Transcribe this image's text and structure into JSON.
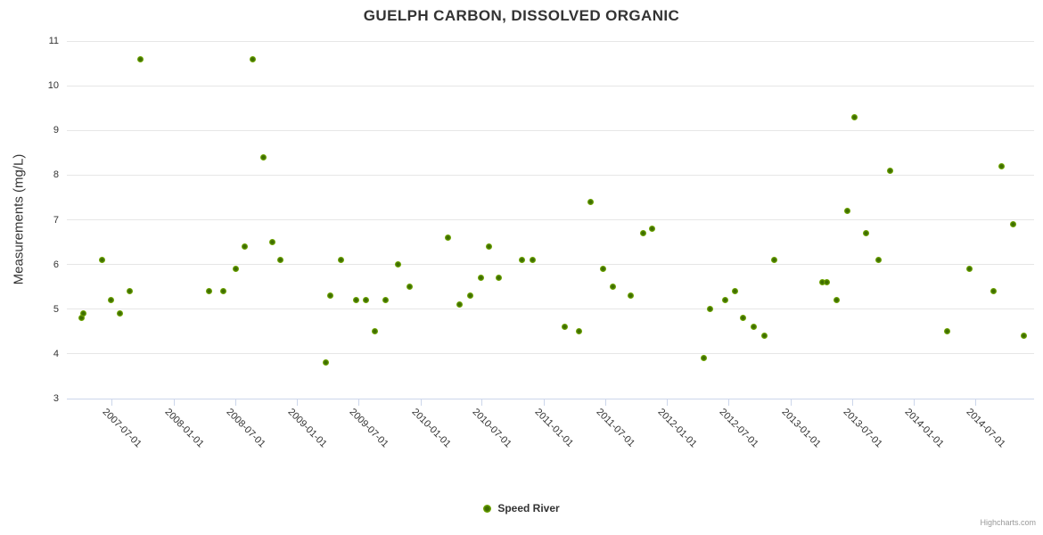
{
  "credit": "Highcharts.com",
  "colors": {
    "background": "#ffffff",
    "text_primary": "#333333",
    "grid": "#e6e6e6",
    "axis_line": "#ccd6eb",
    "tick_mark": "#ccd6eb",
    "marker_outer": "#7bb301",
    "marker_inner": "#3f6e00",
    "credit_text": "#999999"
  },
  "chart_data": {
    "type": "scatter",
    "title": "GUELPH CARBON, DISSOLVED ORGANIC",
    "xlabel": "",
    "ylabel": "Measurements (mg/L)",
    "ylim": [
      3,
      11
    ],
    "y_ticks": [
      3,
      4,
      5,
      6,
      7,
      8,
      9,
      10,
      11
    ],
    "xlim": [
      "2007-02-19",
      "2014-12-22"
    ],
    "x_ticks": [
      "2007-07-01",
      "2008-01-01",
      "2008-07-01",
      "2009-01-01",
      "2009-07-01",
      "2010-01-01",
      "2010-07-01",
      "2011-01-01",
      "2011-07-01",
      "2012-01-01",
      "2012-07-01",
      "2013-01-01",
      "2013-07-01",
      "2014-01-01",
      "2014-07-01"
    ],
    "grid": true,
    "legend_position": "bottom-center",
    "series": [
      {
        "name": "Speed River",
        "points": [
          [
            "2007-04-03",
            4.8
          ],
          [
            "2007-04-10",
            4.9
          ],
          [
            "2007-06-02",
            6.1
          ],
          [
            "2007-06-29",
            5.2
          ],
          [
            "2007-07-26",
            4.9
          ],
          [
            "2007-08-23",
            5.4
          ],
          [
            "2007-09-25",
            10.6
          ],
          [
            "2008-04-14",
            5.4
          ],
          [
            "2008-05-28",
            5.4
          ],
          [
            "2008-07-04",
            5.9
          ],
          [
            "2008-07-29",
            6.4
          ],
          [
            "2008-08-22",
            10.6
          ],
          [
            "2008-09-23",
            8.4
          ],
          [
            "2008-10-18",
            6.5
          ],
          [
            "2008-11-13",
            6.1
          ],
          [
            "2009-03-27",
            3.8
          ],
          [
            "2009-04-10",
            5.3
          ],
          [
            "2009-05-11",
            6.1
          ],
          [
            "2009-06-24",
            5.2
          ],
          [
            "2009-07-23",
            5.2
          ],
          [
            "2009-08-18",
            4.5
          ],
          [
            "2009-09-19",
            5.2
          ],
          [
            "2009-10-25",
            6.0
          ],
          [
            "2009-11-29",
            5.5
          ],
          [
            "2010-03-22",
            6.6
          ],
          [
            "2010-04-26",
            5.1
          ],
          [
            "2010-05-27",
            5.3
          ],
          [
            "2010-06-28",
            5.7
          ],
          [
            "2010-07-23",
            6.4
          ],
          [
            "2010-08-21",
            5.7
          ],
          [
            "2010-10-29",
            6.1
          ],
          [
            "2010-11-29",
            6.1
          ],
          [
            "2011-03-03",
            4.6
          ],
          [
            "2011-04-16",
            4.5
          ],
          [
            "2011-05-20",
            7.4
          ],
          [
            "2011-06-24",
            5.9
          ],
          [
            "2011-07-23",
            5.5
          ],
          [
            "2011-09-15",
            5.3
          ],
          [
            "2011-10-21",
            6.7
          ],
          [
            "2011-11-18",
            6.8
          ],
          [
            "2012-04-18",
            3.9
          ],
          [
            "2012-05-08",
            5.0
          ],
          [
            "2012-06-20",
            5.2
          ],
          [
            "2012-07-19",
            5.4
          ],
          [
            "2012-08-12",
            4.8
          ],
          [
            "2012-09-14",
            4.6
          ],
          [
            "2012-10-14",
            4.4
          ],
          [
            "2012-11-14",
            6.1
          ],
          [
            "2013-04-03",
            5.6
          ],
          [
            "2013-04-17",
            5.6
          ],
          [
            "2013-05-17",
            5.2
          ],
          [
            "2013-06-17",
            7.2
          ],
          [
            "2013-07-09",
            9.3
          ],
          [
            "2013-08-12",
            6.7
          ],
          [
            "2013-09-18",
            6.1
          ],
          [
            "2013-10-22",
            8.1
          ],
          [
            "2014-04-08",
            4.5
          ],
          [
            "2014-06-14",
            5.9
          ],
          [
            "2014-08-24",
            5.4
          ],
          [
            "2014-09-17",
            8.2
          ],
          [
            "2014-10-20",
            6.9
          ],
          [
            "2014-11-21",
            4.4
          ]
        ]
      }
    ]
  }
}
